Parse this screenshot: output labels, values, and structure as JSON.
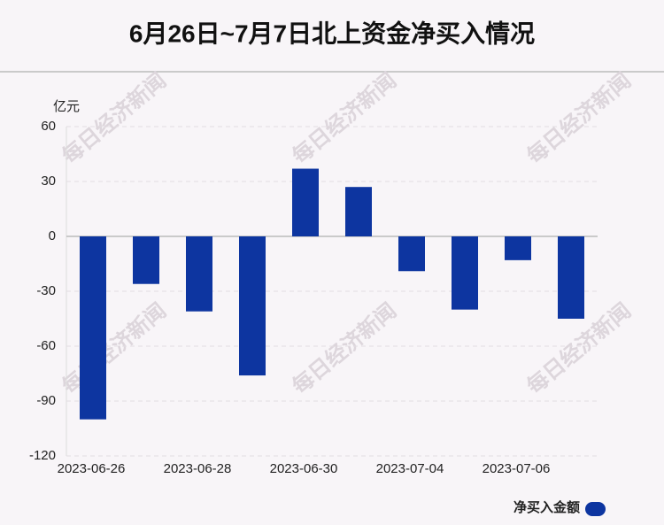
{
  "chart_data": {
    "type": "bar",
    "title": "6月26日~7月7日北上资金净买入情况",
    "y_unit": "亿元",
    "watermark": "每日经济新闻",
    "categories": [
      "2023-06-26",
      null,
      "2023-06-28",
      null,
      "2023-06-30",
      null,
      "2023-07-04",
      null,
      "2023-07-06",
      null
    ],
    "series": [
      {
        "name": "净买入金额",
        "color": "#0d35a0",
        "values": [
          -100,
          -26,
          -41,
          -76,
          37,
          27,
          -19,
          -40,
          -13,
          -45
        ]
      }
    ],
    "ylim": [
      -120,
      60
    ],
    "yticks": [
      -120,
      -90,
      -60,
      -30,
      0,
      30,
      60
    ],
    "grid": true,
    "legend": "bottom-right"
  }
}
